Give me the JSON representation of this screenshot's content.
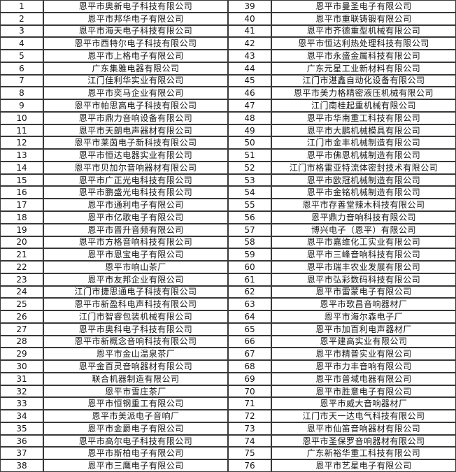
{
  "colors": {
    "background": "#ffffff",
    "border": "#383838",
    "text": "#141414"
  },
  "table": {
    "left_rows": [
      {
        "num": "1",
        "name": "恩平市奥新电子科技有限公司"
      },
      {
        "num": "2",
        "name": "恩平市邦华电子有限公司"
      },
      {
        "num": "3",
        "name": "恩平市海天电子科技有限公司"
      },
      {
        "num": "4",
        "name": "恩平市西特尔电子科技有限公司"
      },
      {
        "num": "5",
        "name": "恩平市上格电子有限公司"
      },
      {
        "num": "6",
        "name": "广东集雅电器有限公司"
      },
      {
        "num": "7",
        "name": "江门佳利华实业有限公司"
      },
      {
        "num": "8",
        "name": "恩平市奕马企业有限公司"
      },
      {
        "num": "9",
        "name": "恩平市帕思高电子科技有限公司"
      },
      {
        "num": "10",
        "name": "恩平市鼎力音响设备有限公司"
      },
      {
        "num": "11",
        "name": "恩平市天朗电声器材有限公司"
      },
      {
        "num": "12",
        "name": "恩平市莱茵电子新科技有限公司"
      },
      {
        "num": "13",
        "name": "恩平市恒达电器实业有限公司"
      },
      {
        "num": "14",
        "name": "恩平市贝加尔音响器材有限公司"
      },
      {
        "num": "15",
        "name": "恩平市广正光电科技有限公司"
      },
      {
        "num": "16",
        "name": "恩平市鹏盛光电科技有限公司"
      },
      {
        "num": "17",
        "name": "恩平市通利电子有限公司"
      },
      {
        "num": "18",
        "name": "恩平市亿歌电子有限公司"
      },
      {
        "num": "19",
        "name": "恩平市晋升音频有限公司"
      },
      {
        "num": "20",
        "name": "恩平市方格音响科技有限公司"
      },
      {
        "num": "21",
        "name": "恩平市恩宝电子有限公司"
      },
      {
        "num": "22",
        "name": "恩平市响山茶厂"
      },
      {
        "num": "23",
        "name": "恩平市友邦企业有限公司"
      },
      {
        "num": "24",
        "name": "江门市捷思通电子科技有限公司"
      },
      {
        "num": "25",
        "name": "恩平市新盈科电声科技有限公司"
      },
      {
        "num": "26",
        "name": "江门市智睿包装机械有限公司"
      },
      {
        "num": "27",
        "name": "恩平市奥科电子科技有限公司"
      },
      {
        "num": "28",
        "name": "恩平市新概念音响科技有限公司"
      },
      {
        "num": "29",
        "name": "恩平市金山温泉茶厂"
      },
      {
        "num": "30",
        "name": "恩平金百灵音响器材有限公司"
      },
      {
        "num": "31",
        "name": "联合机器制造有限公司"
      },
      {
        "num": "32",
        "name": "恩平市雪庄茶厂"
      },
      {
        "num": "33",
        "name": "恩平市恒钢重工有限公司"
      },
      {
        "num": "34",
        "name": "恩平市美派电子音响厂"
      },
      {
        "num": "35",
        "name": "恩平市金爵电子有限公司"
      },
      {
        "num": "36",
        "name": "恩平市高尔电子科技有限公司"
      },
      {
        "num": "37",
        "name": "恩平市斯柏电子有限公司"
      },
      {
        "num": "38",
        "name": "恩平市三鹰电子有限公司"
      }
    ],
    "right_rows": [
      {
        "num": "39",
        "name": "恩平市曼圣电子有限公司"
      },
      {
        "num": "40",
        "name": "恩平市重联铸锻有限公司"
      },
      {
        "num": "41",
        "name": "恩平市齐德重型机械有限公司"
      },
      {
        "num": "42",
        "name": "恩平市恒达利热处理科技有限公司"
      },
      {
        "num": "43",
        "name": "恩平市永盛金属科技有限公司"
      },
      {
        "num": "44",
        "name": "广东元星工业新材料有限公司"
      },
      {
        "num": "45",
        "name": "江门市湛鑫自动化设备有限公司"
      },
      {
        "num": "46",
        "name": "恩平市美力格精密液压机械有限公司"
      },
      {
        "num": "47",
        "name": "江门南桂起重机械有限公司"
      },
      {
        "num": "48",
        "name": "恩平市华南重工科技有限公司"
      },
      {
        "num": "49",
        "name": "恩平市大鹏机械模具有限公司"
      },
      {
        "num": "50",
        "name": "江门市金丰机械制造有限公司"
      },
      {
        "num": "51",
        "name": "恩平市佛恩机械制造有限公司"
      },
      {
        "num": "52",
        "name": "江门市格雷亚特流体密封技术有限公司"
      },
      {
        "num": "53",
        "name": "恩平市欧冠机械制造有限公司"
      },
      {
        "num": "54",
        "name": "恩平市金铭机械制造有限公司"
      },
      {
        "num": "55",
        "name": "恩平市存善堂辣木科技有限公司"
      },
      {
        "num": "56",
        "name": "恩平鼎力音响科技有限公司"
      },
      {
        "num": "57",
        "name": "博兴电子（恩平）有限公司"
      },
      {
        "num": "58",
        "name": "恩平市嘉维化工实业有限公司"
      },
      {
        "num": "59",
        "name": "恩平市三峰音响科技有限公司"
      },
      {
        "num": "60",
        "name": "恩平市瑞丰农业发展有限公司"
      },
      {
        "num": "61",
        "name": "恩平市弘彩数码科技有限公司"
      },
      {
        "num": "62",
        "name": "恩平市雷蒙电子有限公司"
      },
      {
        "num": "63",
        "name": "恩平市歌昌音响器材厂"
      },
      {
        "num": "64",
        "name": "恩平市海尔森电子厂"
      },
      {
        "num": "65",
        "name": "恩平市加百利电声器材厂"
      },
      {
        "num": "66",
        "name": "恩平建高实业有限公司"
      },
      {
        "num": "67",
        "name": "恩平市精普实业有限公司"
      },
      {
        "num": "68",
        "name": "恩平市力丰音响有限公司"
      },
      {
        "num": "69",
        "name": "恩平市普域电器有限公司"
      },
      {
        "num": "70",
        "name": "恩平市胜意电子有限公司"
      },
      {
        "num": "71",
        "name": "恩平市威大音响器材厂"
      },
      {
        "num": "72",
        "name": "江门市天一达电气科技有限公司"
      },
      {
        "num": "73",
        "name": "恩平市仙笛音响器材有限公司"
      },
      {
        "num": "74",
        "name": "恩平市圣保罗音响器材有限公司"
      },
      {
        "num": "75",
        "name": "广东新裕华重工科技有限公司"
      },
      {
        "num": "76",
        "name": "恩平市艺星电子有限公司"
      }
    ]
  }
}
